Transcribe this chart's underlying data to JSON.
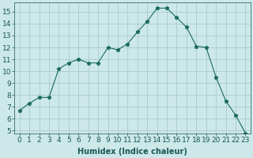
{
  "x": [
    0,
    1,
    2,
    3,
    4,
    5,
    6,
    7,
    8,
    9,
    10,
    11,
    12,
    13,
    14,
    15,
    16,
    17,
    18,
    19,
    20,
    21,
    22,
    23
  ],
  "y": [
    6.7,
    7.3,
    7.8,
    7.8,
    10.2,
    10.7,
    11.0,
    10.7,
    10.7,
    12.0,
    11.8,
    12.3,
    13.3,
    14.2,
    15.3,
    15.3,
    14.5,
    13.7,
    12.1,
    12.0,
    9.5,
    7.5,
    6.3,
    4.8
  ],
  "xlabel": "Humidex (Indice chaleur)",
  "xlim": [
    -0.5,
    23.5
  ],
  "ylim": [
    4.8,
    15.8
  ],
  "yticks": [
    5,
    6,
    7,
    8,
    9,
    10,
    11,
    12,
    13,
    14,
    15
  ],
  "xticks": [
    0,
    1,
    2,
    3,
    4,
    5,
    6,
    7,
    8,
    9,
    10,
    11,
    12,
    13,
    14,
    15,
    16,
    17,
    18,
    19,
    20,
    21,
    22,
    23
  ],
  "line_color": "#1a6b5a",
  "marker": "*",
  "marker_size": 3.5,
  "bg_color": "#cce8e8",
  "grid_color": "#aacccc",
  "xlabel_fontsize": 7,
  "tick_fontsize": 6.5
}
